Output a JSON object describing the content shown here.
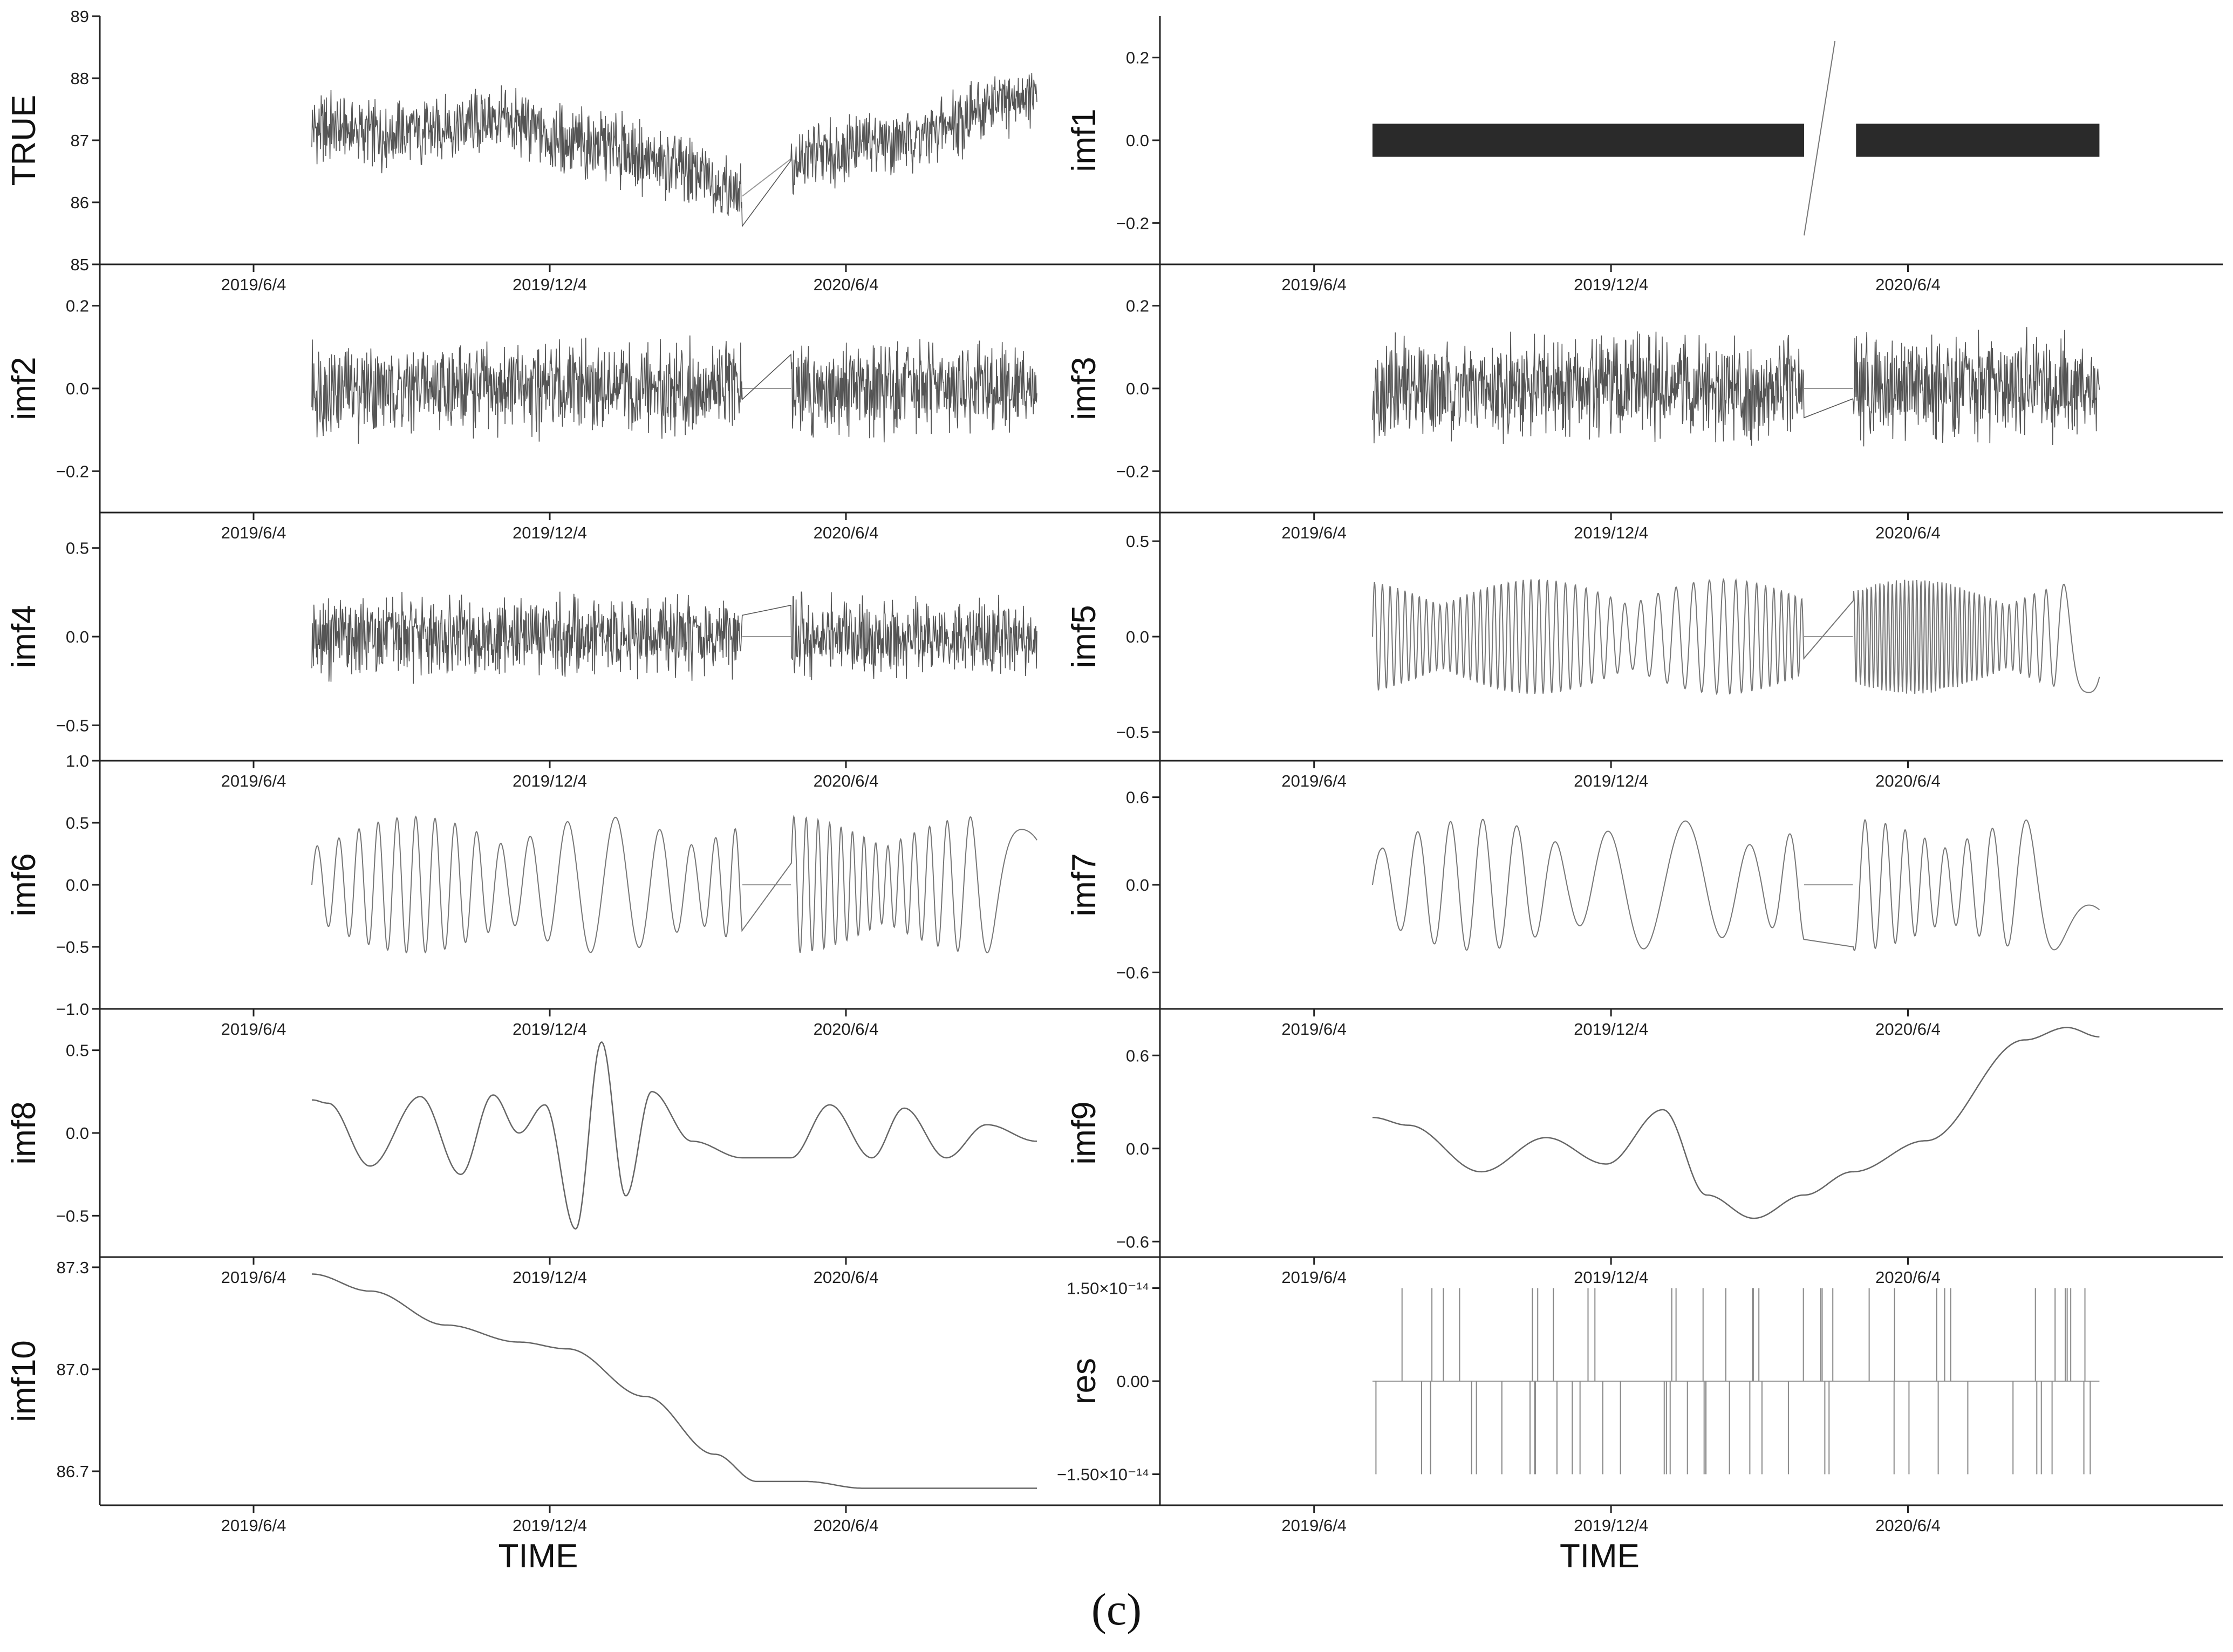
{
  "caption": "(c)",
  "chart_data": {
    "type": "line",
    "xlabel": "TIME",
    "x_ticks": [
      "2019/6/4",
      "2019/12/4",
      "2020/6/4"
    ],
    "x_range": [
      "2019-03-01",
      "2020-12-15"
    ],
    "columns": [
      {
        "x_range": [
          "2019-03-01",
          "2020-12-15"
        ],
        "panels": [
          {
            "id": "TRUE",
            "ylabel": "TRUE",
            "ylim": [
              85,
              89
            ],
            "y_ticks": [
              "85",
              "86",
              "87",
              "88",
              "89"
            ],
            "kind": "noisy",
            "data_range": [
              "2019-07-10",
              "2020-09-30"
            ],
            "gap": [
              "2020-04-01",
              "2020-05-01"
            ],
            "x_label_list": [
              "2019/6/4",
              "2019/12/4",
              "2020/6/4"
            ],
            "series": [
              {
                "x": [
                  "2019-07-10",
                  "2019-09-01",
                  "2019-11-01",
                  "2020-01-01",
                  "2020-03-01",
                  "2020-04-01",
                  "2020-05-01",
                  "2020-07-01",
                  "2020-09-30"
                ],
                "y": [
                  87.2,
                  87.1,
                  87.3,
                  86.9,
                  86.5,
                  86.1,
                  86.7,
                  87.0,
                  87.7
                ]
              }
            ],
            "noise": 0.45
          },
          {
            "id": "imf2",
            "ylabel": "imf2",
            "ylim": [
              -0.3,
              0.3
            ],
            "y_ticks": [
              "−0.2",
              "0.0",
              "0.2"
            ],
            "kind": "noisy",
            "data_range": [
              "2019-07-10",
              "2020-09-30"
            ],
            "gap": [
              "2020-04-01",
              "2020-05-01"
            ],
            "series": [
              {
                "x": [
                  "2019-07-10",
                  "2020-09-30"
                ],
                "y": [
                  0.0,
                  0.0
                ]
              }
            ],
            "noise": 0.09
          },
          {
            "id": "imf4",
            "ylabel": "imf4",
            "ylim": [
              -0.7,
              0.7
            ],
            "y_ticks": [
              "−0.5",
              "0.0",
              "0.5"
            ],
            "kind": "noisy",
            "data_range": [
              "2019-07-10",
              "2020-09-30"
            ],
            "gap": [
              "2020-04-01",
              "2020-05-01"
            ],
            "series": [
              {
                "x": [
                  "2019-07-10",
                  "2020-09-30"
                ],
                "y": [
                  0.0,
                  0.0
                ]
              }
            ],
            "noise": 0.18
          },
          {
            "id": "imf6",
            "ylabel": "imf6",
            "ylim": [
              -1.0,
              1.0
            ],
            "y_ticks": [
              "−1.0",
              "−0.5",
              "0.0",
              "0.5",
              "1.0"
            ],
            "kind": "osc",
            "data_range": [
              "2019-07-10",
              "2020-09-30"
            ],
            "gap": [
              "2020-04-01",
              "2020-05-01"
            ],
            "series": [
              {
                "x": [
                  "2019-07-10",
                  "2020-09-30"
                ],
                "y": [
                  0.0,
                  0.0
                ]
              }
            ],
            "amp": 0.55,
            "period_days": 14
          },
          {
            "id": "imf8",
            "ylabel": "imf8",
            "ylim": [
              -0.75,
              0.75
            ],
            "y_ticks": [
              "−0.5",
              "0.0",
              "0.5"
            ],
            "kind": "line",
            "data_range": [
              "2019-07-10",
              "2020-09-30"
            ],
            "series": [
              {
                "x": [
                  "2019-07-10",
                  "2019-07-20",
                  "2019-08-15",
                  "2019-09-15",
                  "2019-10-10",
                  "2019-10-30",
                  "2019-11-15",
                  "2019-12-01",
                  "2019-12-20",
                  "2020-01-05",
                  "2020-01-20",
                  "2020-02-05",
                  "2020-03-01",
                  "2020-04-01",
                  "2020-05-01",
                  "2020-05-25",
                  "2020-06-20",
                  "2020-07-10",
                  "2020-08-05",
                  "2020-08-30",
                  "2020-09-30"
                ],
                "y": [
                  0.2,
                  0.18,
                  -0.2,
                  0.22,
                  -0.25,
                  0.23,
                  0.0,
                  0.17,
                  -0.58,
                  0.55,
                  -0.38,
                  0.25,
                  -0.05,
                  -0.15,
                  -0.15,
                  0.17,
                  -0.15,
                  0.15,
                  -0.15,
                  0.05,
                  -0.05
                ]
              }
            ]
          },
          {
            "id": "imf10",
            "ylabel": "imf10",
            "ylim": [
              86.6,
              87.33
            ],
            "y_ticks": [
              "86.7",
              "87.0",
              "87.3"
            ],
            "kind": "line",
            "data_range": [
              "2019-07-10",
              "2020-09-30"
            ],
            "series": [
              {
                "x": [
                  "2019-07-10",
                  "2019-08-15",
                  "2019-10-01",
                  "2019-11-15",
                  "2019-12-15",
                  "2020-02-01",
                  "2020-03-15",
                  "2020-04-10",
                  "2020-05-10",
                  "2020-06-15",
                  "2020-09-30"
                ],
                "y": [
                  87.28,
                  87.23,
                  87.13,
                  87.08,
                  87.06,
                  86.92,
                  86.75,
                  86.67,
                  86.67,
                  86.65,
                  86.65
                ]
              }
            ]
          }
        ]
      },
      {
        "x_range": [
          "2019-03-01",
          "2020-12-15"
        ],
        "panels": [
          {
            "id": "imf1",
            "ylabel": "imf1",
            "ylim": [
              -0.3,
              0.3
            ],
            "y_ticks": [
              "−0.2",
              "0.0",
              "0.2"
            ],
            "kind": "band",
            "data_range": [
              "2019-07-10",
              "2020-09-30"
            ],
            "gap": [
              "2020-04-01",
              "2020-05-01"
            ],
            "series": [
              {
                "x": [
                  "2020-04-01",
                  "2020-04-20"
                ],
                "y": [
                  -0.23,
                  0.24
                ]
              }
            ],
            "band": 0.04
          },
          {
            "id": "imf3",
            "ylabel": "imf3",
            "ylim": [
              -0.3,
              0.3
            ],
            "y_ticks": [
              "−0.2",
              "0.0",
              "0.2"
            ],
            "kind": "noisy",
            "data_range": [
              "2019-07-10",
              "2020-09-30"
            ],
            "gap": [
              "2020-04-01",
              "2020-05-01"
            ],
            "series": [
              {
                "x": [
                  "2019-07-10",
                  "2020-09-30"
                ],
                "y": [
                  0.0,
                  0.0
                ]
              }
            ],
            "noise": 0.1
          },
          {
            "id": "imf5",
            "ylabel": "imf5",
            "ylim": [
              -0.65,
              0.65
            ],
            "y_ticks": [
              "−0.5",
              "0.0",
              "0.5"
            ],
            "kind": "osc",
            "data_range": [
              "2019-07-10",
              "2020-09-30"
            ],
            "gap": [
              "2020-04-01",
              "2020-05-01"
            ],
            "series": [
              {
                "x": [
                  "2019-07-10",
                  "2020-09-30"
                ],
                "y": [
                  0.0,
                  0.0
                ]
              }
            ],
            "amp": 0.3,
            "period_days": 5
          },
          {
            "id": "imf7",
            "ylabel": "imf7",
            "ylim": [
              -0.85,
              0.85
            ],
            "y_ticks": [
              "−0.6",
              "0.0",
              "0.6"
            ],
            "kind": "osc",
            "data_range": [
              "2019-07-10",
              "2020-09-30"
            ],
            "gap": [
              "2020-04-01",
              "2020-05-01"
            ],
            "series": [
              {
                "x": [
                  "2019-07-10",
                  "2020-09-30"
                ],
                "y": [
                  0.0,
                  0.0
                ]
              }
            ],
            "amp": 0.45,
            "period_days": 24
          },
          {
            "id": "imf9",
            "ylabel": "imf9",
            "ylim": [
              -0.7,
              0.9
            ],
            "y_ticks": [
              "−0.6",
              "0.0",
              "0.6"
            ],
            "kind": "line",
            "data_range": [
              "2019-07-10",
              "2020-09-30"
            ],
            "series": [
              {
                "x": [
                  "2019-07-10",
                  "2019-08-01",
                  "2019-09-15",
                  "2019-10-25",
                  "2019-12-01",
                  "2020-01-05",
                  "2020-02-01",
                  "2020-03-01",
                  "2020-04-01",
                  "2020-05-01",
                  "2020-06-15",
                  "2020-08-15",
                  "2020-09-10",
                  "2020-09-30"
                ],
                "y": [
                  0.2,
                  0.15,
                  -0.15,
                  0.07,
                  -0.1,
                  0.25,
                  -0.3,
                  -0.45,
                  -0.3,
                  -0.15,
                  0.05,
                  0.7,
                  0.78,
                  0.72
                ]
              }
            ]
          },
          {
            "id": "res",
            "ylabel": "res",
            "ylim": [
              -2e-14,
              2e-14
            ],
            "y_ticks": [
              "−1.50×10⁻¹⁴",
              "0.00",
              "1.50×10⁻¹⁴"
            ],
            "kind": "spikes",
            "data_range": [
              "2019-07-10",
              "2020-09-30"
            ],
            "series": [
              {
                "x": [
                  "2019-07-10",
                  "2020-09-30"
                ],
                "y": [
                  0.0,
                  0.0
                ]
              }
            ],
            "spike": 1.5e-14
          }
        ]
      }
    ]
  }
}
